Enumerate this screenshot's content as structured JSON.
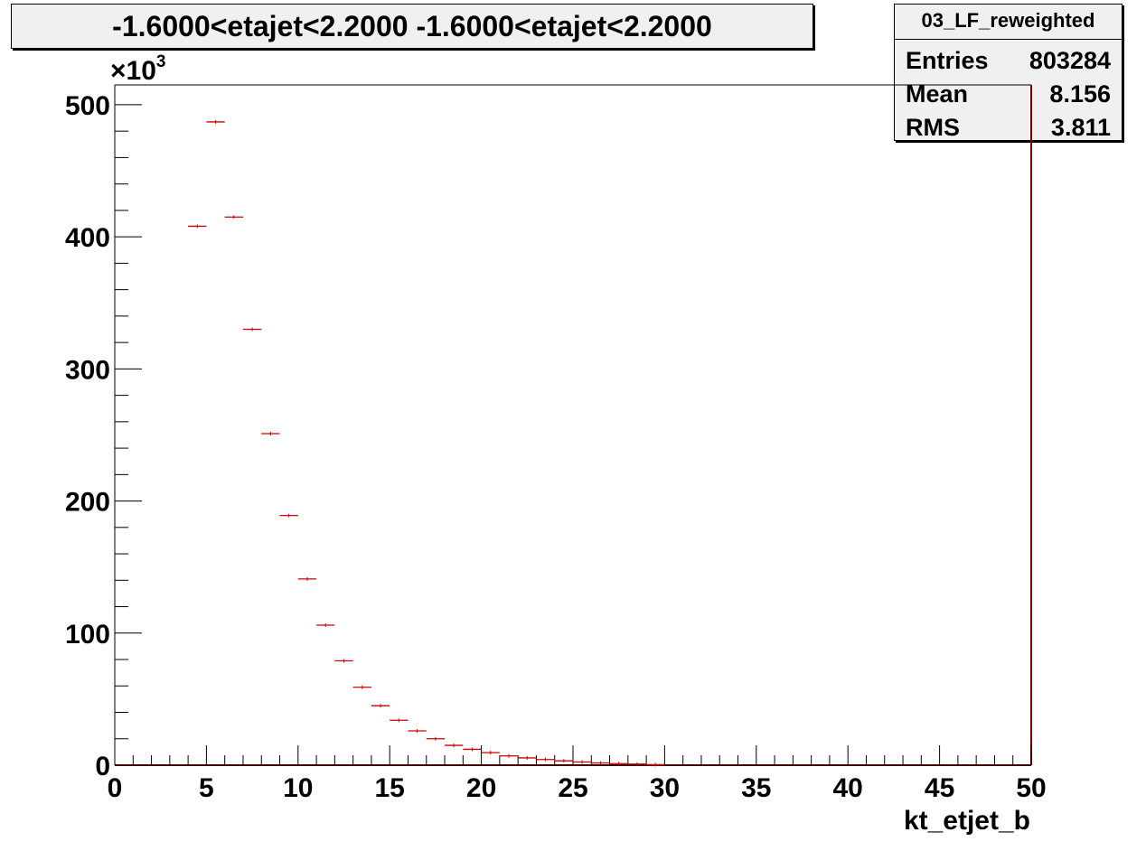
{
  "title": "-1.6000<etajet<2.2000 -1.6000<etajet<2.2000",
  "stats": {
    "name": "03_LF_reweighted",
    "rows": [
      {
        "key": "Entries",
        "value": "803284"
      },
      {
        "key": "Mean",
        "value": "8.156"
      },
      {
        "key": "RMS",
        "value": "3.811"
      }
    ]
  },
  "chart_data": {
    "type": "scatter",
    "title": "-1.6000<etajet<2.2000 -1.6000<etajet<2.2000",
    "xlabel": "kt_etjet_b",
    "ylabel": "",
    "y_multiplier_label": "×10",
    "y_multiplier_exponent": "3",
    "xlim": [
      0,
      50
    ],
    "ylim": [
      0,
      515
    ],
    "bin_width": 1,
    "x_ticks": [
      0,
      5,
      10,
      15,
      20,
      25,
      30,
      35,
      40,
      45,
      50
    ],
    "y_ticks": [
      0,
      100,
      200,
      300,
      400,
      500
    ],
    "grid": false,
    "colors": {
      "marker": "#cc0000",
      "frame": "#800000",
      "axis": "#000000"
    },
    "x": [
      4.5,
      5.5,
      6.5,
      7.5,
      8.5,
      9.5,
      10.5,
      11.5,
      12.5,
      13.5,
      14.5,
      15.5,
      16.5,
      17.5,
      18.5,
      19.5,
      20.5,
      21.5,
      22.5,
      23.5,
      24.5,
      25.5,
      26.5,
      27.5,
      28.5,
      29.5
    ],
    "values": [
      408,
      487,
      415,
      330,
      251,
      189,
      141,
      106,
      79,
      59,
      45,
      34,
      26,
      20,
      15,
      12,
      9.5,
      7,
      5.5,
      4.3,
      3.3,
      2.4,
      1.7,
      1.2,
      0.8,
      0.4
    ]
  }
}
